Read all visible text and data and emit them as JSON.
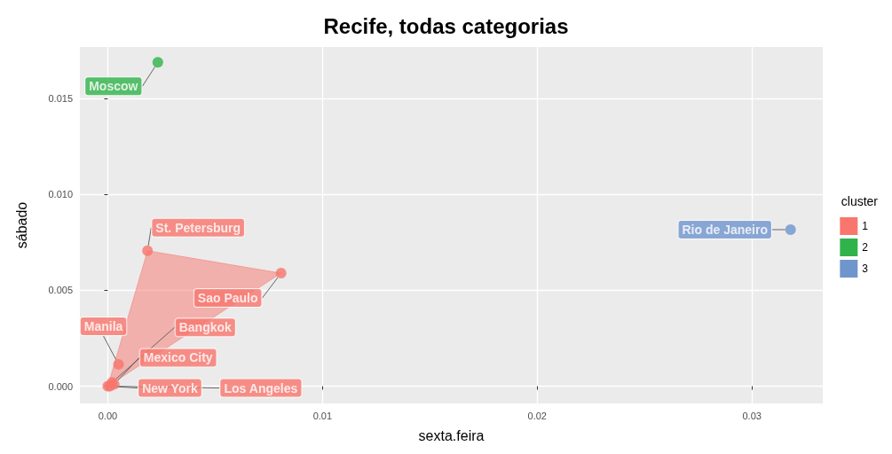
{
  "chart_data": {
    "type": "scatter",
    "title": "Recife, todas categorias",
    "xlabel": "sexta.feira",
    "ylabel": "sábado",
    "legend_title": "cluster",
    "legend": "right",
    "grid": true,
    "marker": "circle",
    "xlim": [
      -0.0013,
      0.0333
    ],
    "xticks": [
      {
        "value": 0,
        "label": "0.00"
      },
      {
        "value": 0.01,
        "label": "0.01"
      },
      {
        "value": 0.02,
        "label": "0.02"
      },
      {
        "value": 0.03,
        "label": "0.03"
      }
    ],
    "ylim": [
      -0.0009,
      0.0177
    ],
    "yticks": [
      {
        "value": 0,
        "label": "0.000"
      },
      {
        "value": 0.005,
        "label": "0.005"
      },
      {
        "value": 0.01,
        "label": "0.010"
      },
      {
        "value": 0.015,
        "label": "0.015"
      }
    ],
    "series": [
      {
        "name": "1",
        "color": "#f8766d",
        "x": [
          0.00185,
          0.00807,
          0.0005,
          0.0002,
          0.0003,
          0,
          0.0001
        ],
        "values": [
          0.00707,
          0.0059,
          0.00114,
          0.0002,
          0.0001,
          0,
          0
        ],
        "value_labels": [
          "St. Petersburg",
          "Sao Paulo",
          "Manila",
          "Bangkok",
          "Mexico City",
          "New York",
          "Los Angeles"
        ]
      },
      {
        "name": "2",
        "color": "#2fb34a",
        "x": [
          0.00233
        ],
        "values": [
          0.0169
        ],
        "value_labels": [
          "Moscow"
        ]
      },
      {
        "name": "3",
        "color": "#6f95cd",
        "x": [
          0.0318
        ],
        "values": [
          0.00817
        ],
        "value_labels": [
          "Rio de Janeiro"
        ]
      },
      {
        "type": "area",
        "marker": "none",
        "color": "#f8766d",
        "x": [
          0,
          0.00807,
          0.00185
        ],
        "values": [
          0,
          0.0059,
          0.00707
        ]
      }
    ]
  }
}
